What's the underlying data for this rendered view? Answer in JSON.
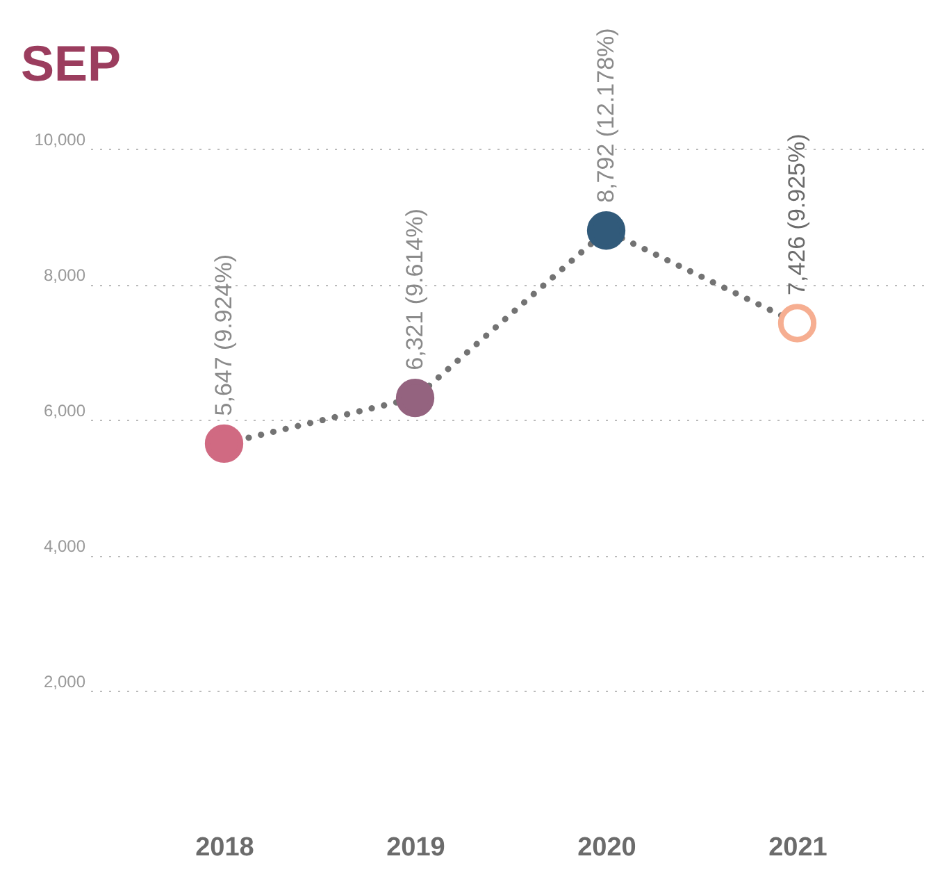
{
  "chart_data": {
    "type": "line",
    "title": "SEP",
    "categories": [
      "2018",
      "2019",
      "2020",
      "2021"
    ],
    "series": [
      {
        "color": "#737373",
        "values": [
          5647,
          6321,
          8792,
          7426
        ],
        "colors": [
          "#d06a82",
          "#94637f",
          "#315a7a",
          "#f6ae91"
        ],
        "value_labels": [
          "5,647 (9.924%)",
          "6,321 (9.614%)",
          "8,792 (12.178%)",
          "7,426 (9.925%)"
        ]
      }
    ],
    "ylim": [
      2000,
      10000
    ],
    "yticks": [
      {
        "value": 2000,
        "label": "2,000"
      },
      {
        "value": 4000,
        "label": "4,000"
      },
      {
        "value": 6000,
        "label": "6,000"
      },
      {
        "value": 8000,
        "label": "8,000"
      },
      {
        "value": 10000,
        "label": "10,000"
      }
    ],
    "grid": "y",
    "marker": "circle",
    "line_style": "dotted"
  }
}
